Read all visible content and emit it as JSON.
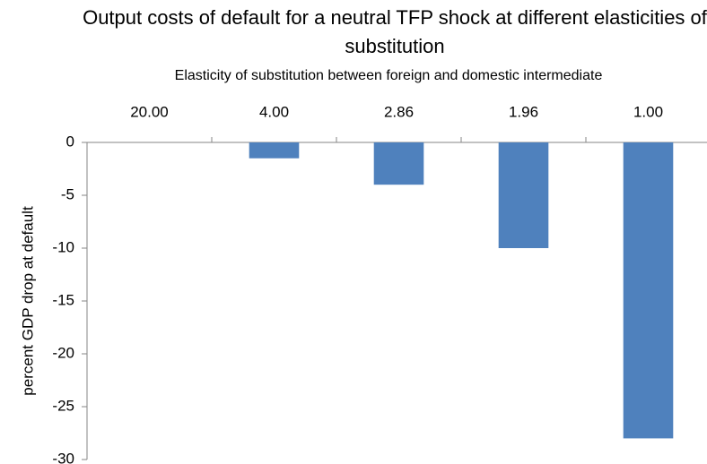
{
  "chart_data": {
    "type": "bar",
    "title": "Output costs of default for a neutral TFP shock at different elasticities of substitution",
    "x_label": "Elasticity of substitution between foreign and domestic intermediate",
    "y_label": "percent GDP drop at default",
    "categories": [
      "20.00",
      "4.00",
      "2.86",
      "1.96",
      "1.00"
    ],
    "values": [
      0,
      -1.5,
      -4,
      -10,
      -28
    ],
    "color": "#4f81bd",
    "ylim": [
      -30,
      0
    ],
    "yticks": [
      0,
      -5,
      -10,
      -15,
      -20,
      -25,
      -30
    ],
    "grid": false
  }
}
